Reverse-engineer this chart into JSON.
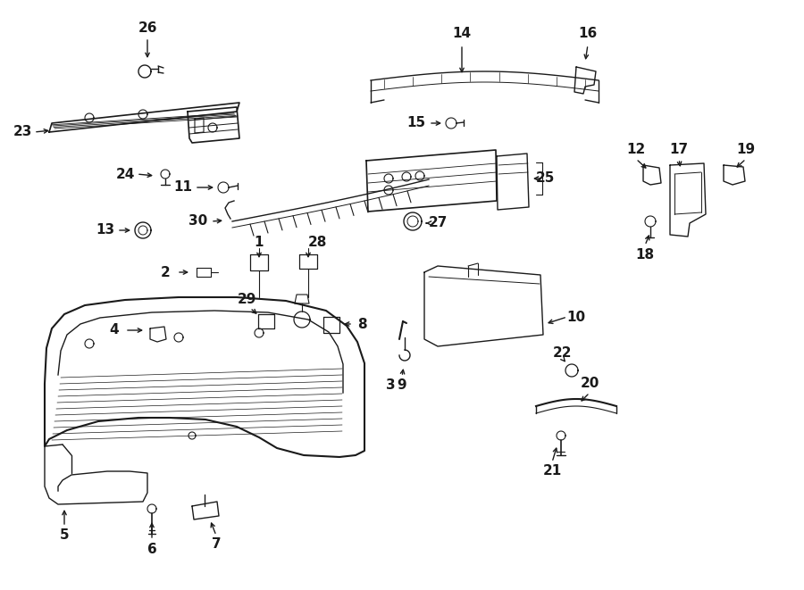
{
  "bg_color": "#ffffff",
  "line_color": "#1a1a1a",
  "figsize": [
    9.0,
    6.61
  ],
  "dpi": 100,
  "lw": 1.0
}
